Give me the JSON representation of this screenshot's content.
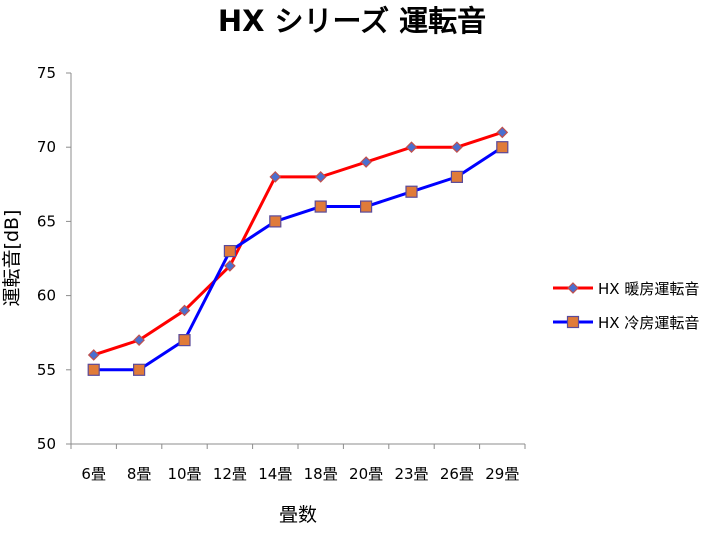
{
  "chart_data": {
    "type": "line",
    "title": "HX シリーズ 運転音",
    "xlabel": "畳数",
    "ylabel": "運転音[dB]",
    "categories": [
      "6畳",
      "8畳",
      "10畳",
      "12畳",
      "14畳",
      "18畳",
      "20畳",
      "23畳",
      "26畳",
      "29畳"
    ],
    "ylim": [
      50,
      75
    ],
    "yticks": [
      50,
      55,
      60,
      65,
      70,
      75
    ],
    "grid": false,
    "legend_position": "right",
    "series": [
      {
        "name": "HX 暖房運転音",
        "values": [
          56,
          57,
          59,
          62,
          68,
          68,
          69,
          70,
          70,
          71
        ],
        "line_color": "#ff0000",
        "marker": "diamond",
        "marker_fill": "#4a6fd0",
        "marker_stroke": "#c0504d"
      },
      {
        "name": "HX 冷房運転音",
        "values": [
          55,
          55,
          57,
          63,
          65,
          66,
          66,
          67,
          68,
          70
        ],
        "line_color": "#0000ff",
        "marker": "square",
        "marker_fill": "#e07b39",
        "marker_stroke": "#5a4a9a"
      }
    ]
  }
}
